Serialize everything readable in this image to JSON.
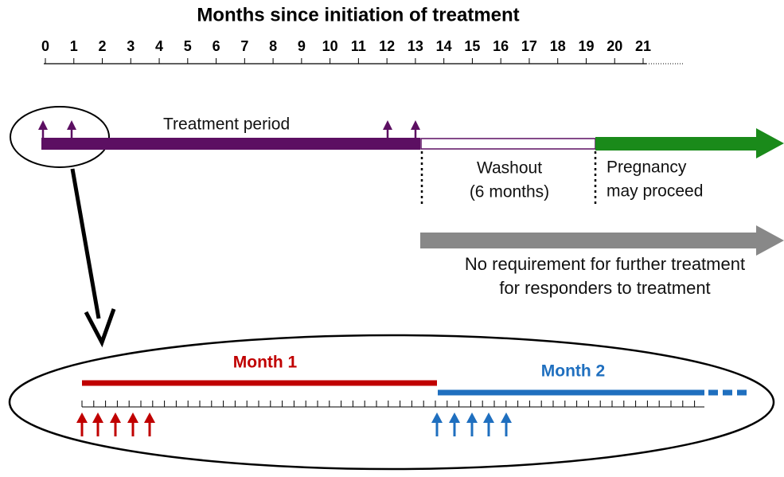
{
  "title": "Months since initiation of treatment",
  "axis": {
    "ticks": [
      0,
      1,
      2,
      3,
      4,
      5,
      6,
      7,
      8,
      9,
      10,
      11,
      12,
      13,
      14,
      15,
      16,
      17,
      18,
      19,
      20,
      21
    ]
  },
  "phases": {
    "treatment": "Treatment period",
    "washout": [
      "Washout",
      "(6 months)"
    ],
    "pregnancy": [
      "Pregnancy",
      "may proceed"
    ]
  },
  "note": [
    "No requirement for further treatment",
    "for responders to treatment"
  ],
  "detail": {
    "month1": "Month 1",
    "month2": "Month 2"
  }
}
